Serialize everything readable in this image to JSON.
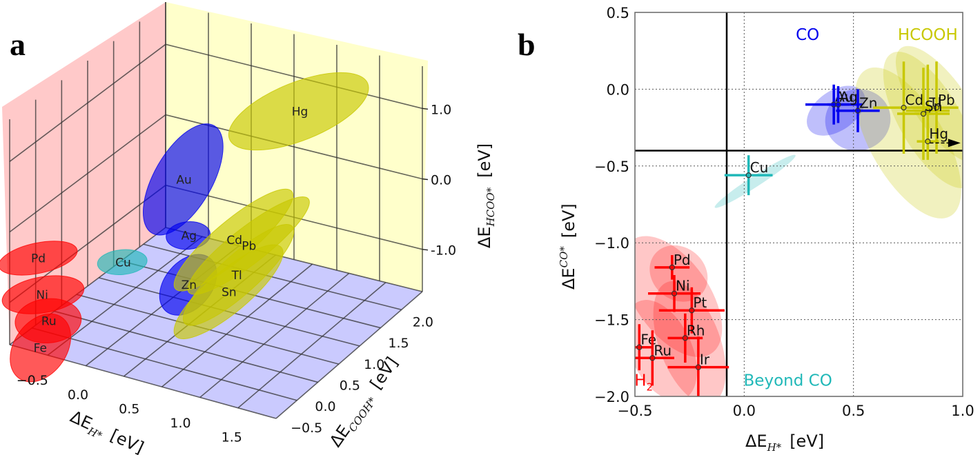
{
  "figure": {
    "panels": [
      "a",
      "b"
    ]
  },
  "colors": {
    "h2": "#ff0000",
    "co": "#0000ee",
    "hcooh": "#c8c800",
    "beyond_co": "#20b8b8",
    "wall_x": "#ffc8c8",
    "wall_y": "#ffffc8",
    "floor": "#c8c8ff"
  },
  "chart_data": [
    {
      "panel": "a",
      "type": "scatter3d",
      "title": "",
      "xlabel": "ΔE_H* [eV]",
      "ylabel": "ΔE_COOH* [eV]",
      "zlabel": "ΔE_HCOO* [eV]",
      "xlabel_main": "ΔE",
      "xlabel_sub": "H*",
      "xlabel_unit": "[eV]",
      "ylabel_main": "ΔE",
      "ylabel_sub": "COOH*",
      "ylabel_unit": "[eV]",
      "zlabel_main": "ΔE",
      "zlabel_sub": "HCOO*",
      "zlabel_unit": "[eV]",
      "xticks": [
        "−0.5",
        "0.0",
        "0.5",
        "1.0",
        "1.5"
      ],
      "yticks": [
        "−0.5",
        "0.0",
        "0.5",
        "1.0",
        "1.5",
        "2.0"
      ],
      "zticks": [
        "1.0",
        "0.0",
        "-1.0"
      ],
      "xlim": [
        -0.7,
        1.9
      ],
      "ylim": [
        -0.6,
        2.4
      ],
      "zlim": [
        -1.6,
        1.6
      ],
      "grid": true,
      "series": [
        {
          "name": "H2",
          "color_key": "h2",
          "points": [
            {
              "label": "Pd",
              "x": -0.55,
              "y": -0.35,
              "z": -0.45
            },
            {
              "label": "Ni",
              "x": -0.5,
              "y": -0.35,
              "z": -0.95
            },
            {
              "label": "Ru",
              "x": -0.45,
              "y": -0.35,
              "z": -1.3
            },
            {
              "label": "Fe",
              "x": -0.45,
              "y": -0.5,
              "z": -1.6
            }
          ]
        },
        {
          "name": "Beyond CO",
          "color_key": "beyond_co",
          "points": [
            {
              "label": "Cu",
              "x": 0.0,
              "y": 0.2,
              "z": -0.6
            }
          ]
        },
        {
          "name": "CO",
          "color_key": "co",
          "points": [
            {
              "label": "Au",
              "x": 0.4,
              "y": 0.6,
              "z": 0.5
            },
            {
              "label": "Ag",
              "x": 0.5,
              "y": 0.5,
              "z": -0.2
            },
            {
              "label": "Zn",
              "x": 0.5,
              "y": 0.5,
              "z": -0.9
            }
          ]
        },
        {
          "name": "HCOOH",
          "color_key": "hcooh",
          "points": [
            {
              "label": "Hg",
              "x": 0.9,
              "y": 1.9,
              "z": 0.9
            },
            {
              "label": "Cd",
              "x": 0.75,
              "y": 0.9,
              "z": -0.4
            },
            {
              "label": "Pb",
              "x": 0.85,
              "y": 1.0,
              "z": -0.5
            },
            {
              "label": "Tl",
              "x": 0.85,
              "y": 0.8,
              "z": -0.8
            },
            {
              "label": "Sn",
              "x": 0.8,
              "y": 0.7,
              "z": -1.0
            }
          ]
        }
      ]
    },
    {
      "panel": "b",
      "type": "scatter",
      "title": "",
      "xlabel_main": "ΔE",
      "xlabel_sub": "H*",
      "xlabel_unit": "[eV]",
      "ylabel_main": "ΔE",
      "ylabel_sub": "CO*",
      "ylabel_unit": "[eV]",
      "xlim": [
        -0.5,
        1.0
      ],
      "ylim": [
        -2.0,
        0.5
      ],
      "xticks": [
        -0.5,
        0.0,
        0.5,
        1.0
      ],
      "xtick_labels": [
        "−0.5",
        "0.0",
        "0.5",
        "1.0"
      ],
      "yticks": [
        0.5,
        0.0,
        -0.5,
        -1.0,
        -1.5,
        -2.0
      ],
      "ytick_labels": [
        "0.5",
        "0.0",
        "−0.5",
        "−1.0",
        "−1.5",
        "−2.0"
      ],
      "grid": "dotted",
      "threshold_lines": {
        "x": -0.08,
        "y": -0.4
      },
      "region_labels": [
        {
          "text": "CO",
          "x": 0.29,
          "y": 0.32,
          "color_key": "co"
        },
        {
          "text": "HCOOH",
          "x": 0.84,
          "y": 0.32,
          "color_key": "hcooh"
        },
        {
          "text": "Beyond CO",
          "x": 0.2,
          "y": -1.93,
          "color_key": "beyond_co"
        },
        {
          "text": "H",
          "sub": "2",
          "x": -0.46,
          "y": -1.93,
          "color_key": "h2"
        }
      ],
      "series": [
        {
          "name": "H2",
          "color_key": "h2",
          "points": [
            {
              "label": "Pd",
              "x": -0.33,
              "y": -1.16,
              "xerr": 0.08,
              "yerr": 0.08
            },
            {
              "label": "Ni",
              "x": -0.32,
              "y": -1.33,
              "xerr": 0.12,
              "yerr": 0.12
            },
            {
              "label": "Pt",
              "x": -0.24,
              "y": -1.44,
              "xerr": 0.15,
              "yerr": 0.15
            },
            {
              "label": "Rh",
              "x": -0.27,
              "y": -1.62,
              "xerr": 0.08,
              "yerr": 0.16
            },
            {
              "label": "Fe",
              "x": -0.48,
              "y": -1.68,
              "xerr": 0.06,
              "yerr": 0.15
            },
            {
              "label": "Ru",
              "x": -0.42,
              "y": -1.75,
              "xerr": 0.1,
              "yerr": 0.18
            },
            {
              "label": "Ir",
              "x": -0.21,
              "y": -1.81,
              "xerr": 0.14,
              "yerr": 0.2
            }
          ]
        },
        {
          "name": "Beyond CO",
          "color_key": "beyond_co",
          "points": [
            {
              "label": "Cu",
              "x": 0.02,
              "y": -0.56,
              "xerr": 0.11,
              "yerr": 0.13
            }
          ]
        },
        {
          "name": "CO",
          "color_key": "co",
          "points": [
            {
              "label": "Au",
              "x": 0.41,
              "y": -0.1,
              "xerr": 0.13,
              "yerr": 0.13
            },
            {
              "label": "Ag",
              "x": 0.43,
              "y": -0.1,
              "xerr": 0.05,
              "yerr": 0.12
            },
            {
              "label": "Zn",
              "x": 0.52,
              "y": -0.14,
              "xerr": 0.1,
              "yerr": 0.14
            }
          ]
        },
        {
          "name": "HCOOH",
          "color_key": "hcooh",
          "points": [
            {
              "label": "Cd",
              "x": 0.73,
              "y": -0.12,
              "xerr": 0.14,
              "yerr": 0.3
            },
            {
              "label": "Tl",
              "x": 0.84,
              "y": -0.14,
              "xerr": 0.1,
              "yerr": 0.3
            },
            {
              "label": "Pb",
              "x": 0.88,
              "y": -0.12,
              "xerr": 0.1,
              "yerr": 0.3
            },
            {
              "label": "Sn",
              "x": 0.82,
              "y": -0.16,
              "xerr": 0.12,
              "yerr": 0.3
            },
            {
              "label": "Hg",
              "x": 0.84,
              "y": -0.34,
              "xerr": 0.05,
              "yerr": 0.12
            }
          ]
        }
      ],
      "annotations": [
        {
          "type": "arrow",
          "from": [
            0.85,
            -0.35
          ],
          "to": [
            0.99,
            -0.35
          ],
          "note": "Hg off-scale arrow"
        }
      ]
    }
  ]
}
